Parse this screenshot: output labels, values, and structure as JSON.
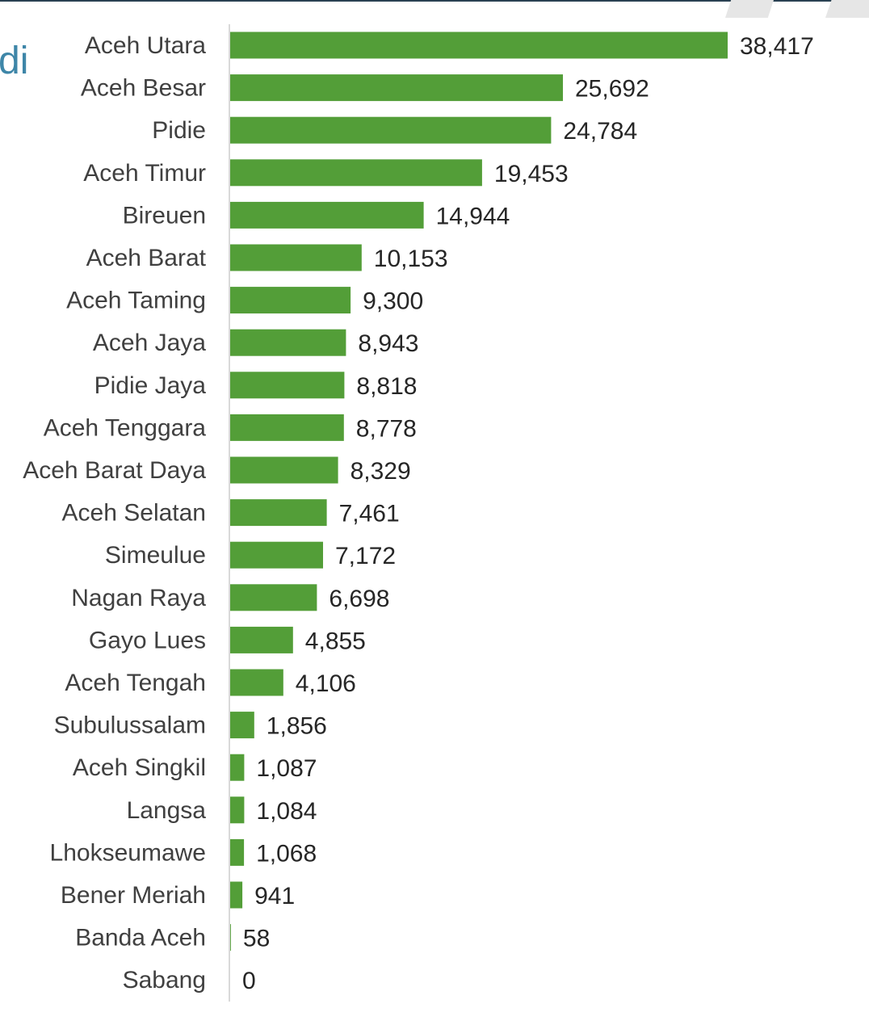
{
  "slide": {
    "title_fragment": "di"
  },
  "chart_data": {
    "type": "bar",
    "orientation": "horizontal",
    "categories": [
      "Aceh Utara",
      "Aceh Besar",
      "Pidie",
      "Aceh Timur",
      "Bireuen",
      "Aceh Barat",
      "Aceh Taming",
      "Aceh Jaya",
      "Pidie Jaya",
      "Aceh Tenggara",
      "Aceh Barat Daya",
      "Aceh Selatan",
      "Simeulue",
      "Nagan Raya",
      "Gayo Lues",
      "Aceh Tengah",
      "Subulussalam",
      "Aceh Singkil",
      "Langsa",
      "Lhokseumawe",
      "Bener Meriah",
      "Banda Aceh",
      "Sabang"
    ],
    "values": [
      38417,
      25692,
      24784,
      19453,
      14944,
      10153,
      9300,
      8943,
      8818,
      8778,
      8329,
      7461,
      7172,
      6698,
      4855,
      4106,
      1856,
      1087,
      1084,
      1068,
      941,
      58,
      0
    ],
    "value_labels": [
      "38,417",
      "25,692",
      "24,784",
      "19,453",
      "14,944",
      "10,153",
      "9,300",
      "8,943",
      "8,818",
      "8,778",
      "8,329",
      "7,461",
      "7,172",
      "6,698",
      "4,855",
      "4,106",
      "1,856",
      "1,087",
      "1,084",
      "1,068",
      "941",
      "58",
      "0"
    ],
    "bar_color": "#539e38",
    "xlim": [
      0,
      38417
    ],
    "grid": false,
    "legend": "none"
  }
}
